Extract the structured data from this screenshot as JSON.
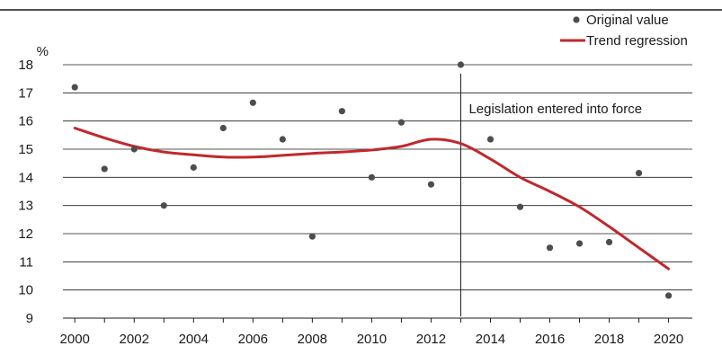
{
  "chart_data": {
    "type": "scatter",
    "title": "",
    "xlabel": "",
    "ylabel": "%",
    "xlim": [
      1999.6,
      2020.8
    ],
    "ylim": [
      9,
      18
    ],
    "x_ticks": [
      2000,
      2002,
      2004,
      2006,
      2008,
      2010,
      2012,
      2014,
      2016,
      2018,
      2020
    ],
    "y_ticks": [
      9,
      10,
      11,
      12,
      13,
      14,
      15,
      16,
      17,
      18
    ],
    "grid": "horizontal",
    "legend_position": "top-right",
    "series": [
      {
        "name": "Original value",
        "type": "scatter",
        "color": "#4d4d4d",
        "points": [
          {
            "x": 2000,
            "y": 17.2
          },
          {
            "x": 2001,
            "y": 14.3
          },
          {
            "x": 2002,
            "y": 15.0
          },
          {
            "x": 2003,
            "y": 13.0
          },
          {
            "x": 2004,
            "y": 14.35
          },
          {
            "x": 2005,
            "y": 15.75
          },
          {
            "x": 2006,
            "y": 16.65
          },
          {
            "x": 2007,
            "y": 15.35
          },
          {
            "x": 2008,
            "y": 11.9
          },
          {
            "x": 2009,
            "y": 16.35
          },
          {
            "x": 2010,
            "y": 14.0
          },
          {
            "x": 2011,
            "y": 15.95
          },
          {
            "x": 2012,
            "y": 13.75
          },
          {
            "x": 2013,
            "y": 18.0
          },
          {
            "x": 2014,
            "y": 15.35
          },
          {
            "x": 2015,
            "y": 12.95
          },
          {
            "x": 2016,
            "y": 11.5
          },
          {
            "x": 2017,
            "y": 11.65
          },
          {
            "x": 2018,
            "y": 11.7
          },
          {
            "x": 2019,
            "y": 14.15
          },
          {
            "x": 2020,
            "y": 9.8
          }
        ]
      },
      {
        "name": "Trend regression",
        "type": "line",
        "color": "#c0282d",
        "points": [
          {
            "x": 2000,
            "y": 15.75
          },
          {
            "x": 2001,
            "y": 15.4
          },
          {
            "x": 2002,
            "y": 15.1
          },
          {
            "x": 2003,
            "y": 14.9
          },
          {
            "x": 2004,
            "y": 14.8
          },
          {
            "x": 2005,
            "y": 14.72
          },
          {
            "x": 2006,
            "y": 14.72
          },
          {
            "x": 2007,
            "y": 14.78
          },
          {
            "x": 2008,
            "y": 14.85
          },
          {
            "x": 2009,
            "y": 14.9
          },
          {
            "x": 2010,
            "y": 14.97
          },
          {
            "x": 2011,
            "y": 15.1
          },
          {
            "x": 2012,
            "y": 15.35
          },
          {
            "x": 2013,
            "y": 15.2
          },
          {
            "x": 2014,
            "y": 14.65
          },
          {
            "x": 2015,
            "y": 14.0
          },
          {
            "x": 2016,
            "y": 13.5
          },
          {
            "x": 2017,
            "y": 12.95
          },
          {
            "x": 2018,
            "y": 12.25
          },
          {
            "x": 2019,
            "y": 11.5
          },
          {
            "x": 2020,
            "y": 10.75
          }
        ]
      }
    ],
    "annotations": [
      {
        "type": "vline",
        "x": 2013,
        "label": "Legislation entered into force"
      }
    ]
  }
}
